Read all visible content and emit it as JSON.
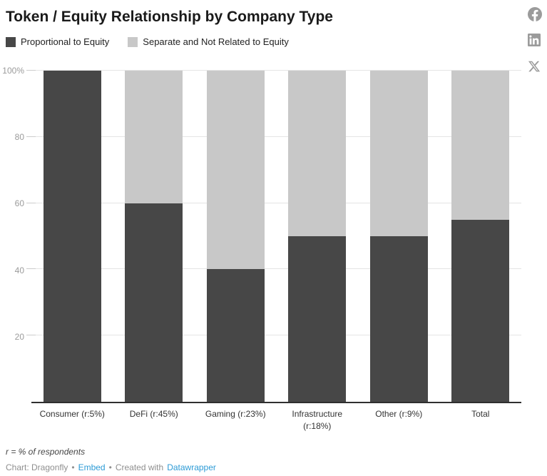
{
  "header": {
    "title": "Token / Equity Relationship by Company Type",
    "share_icons": [
      "facebook-share-icon",
      "linkedin-share-icon",
      "x-share-icon"
    ]
  },
  "legend": {
    "items": [
      {
        "label": "Proportional to Equity",
        "color": "#474747"
      },
      {
        "label": "Separate and Not Related to Equity",
        "color": "#c8c8c8"
      }
    ]
  },
  "chart_data": {
    "type": "bar",
    "stacked": true,
    "title": "Token / Equity Relationship by Company Type",
    "categories": [
      "Consumer (r:5%)",
      "DeFi (r:45%)",
      "Gaming (r:23%)",
      "Infrastructure (r:18%)",
      "Other (r:9%)",
      "Total"
    ],
    "series": [
      {
        "name": "Proportional to Equity",
        "color": "#474747",
        "values": [
          100,
          60,
          40,
          50,
          50,
          55
        ]
      },
      {
        "name": "Separate and Not Related to Equity",
        "color": "#c8c8c8",
        "values": [
          0,
          40,
          60,
          50,
          50,
          45
        ]
      }
    ],
    "xlabel": "",
    "ylabel": "",
    "ylim": [
      0,
      100
    ],
    "yticks": [
      20,
      40,
      60,
      80,
      100
    ],
    "ytick_labels": [
      "20",
      "40",
      "60",
      "80",
      "100%"
    ],
    "grid": true,
    "legend_position": "top"
  },
  "footer": {
    "note": "r = % of respondents",
    "byline_prefix": "Chart: Dragonfly",
    "dot": "•",
    "embed_link": "Embed",
    "created_with": "Created with",
    "datawrapper_link": "Datawrapper"
  },
  "colors": {
    "bar_dark": "#474747",
    "bar_light": "#c8c8c8",
    "gridline": "#e4e4e4",
    "baseline": "#2f2f2f",
    "y_label": "#9b9b9b",
    "x_label": "#333333",
    "link_blue": "#2d9bd6",
    "share_icon_gray": "#9b9b9b"
  }
}
